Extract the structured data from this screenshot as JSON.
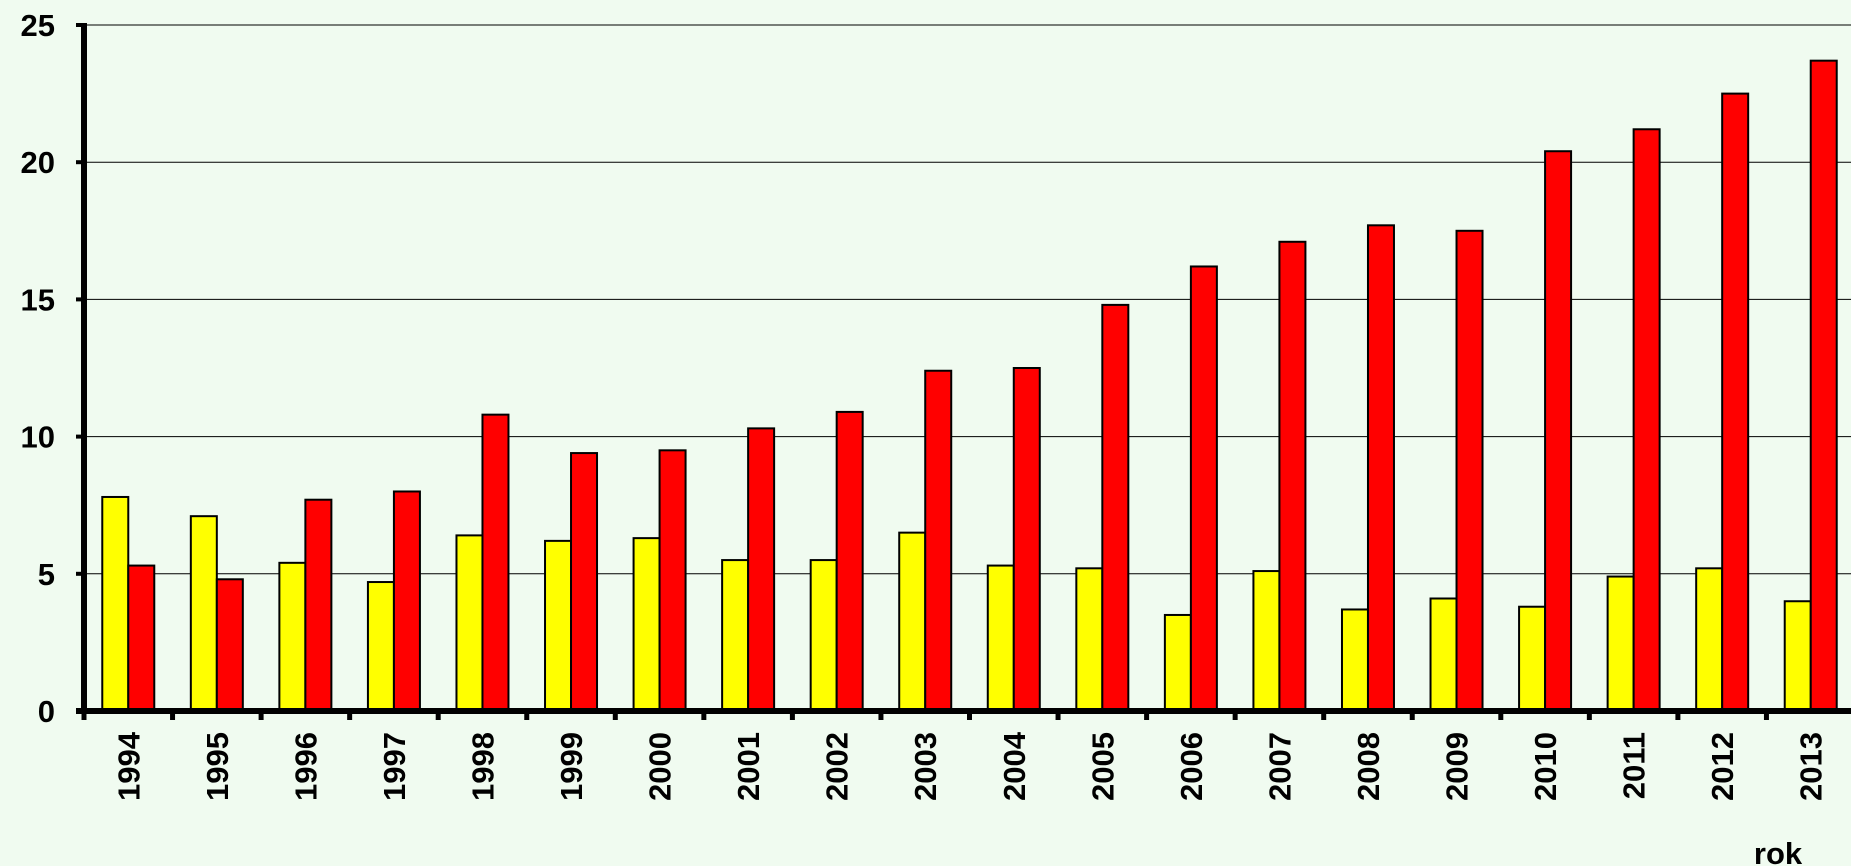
{
  "chart_data": {
    "type": "bar",
    "title": "",
    "xlabel": "rok",
    "ylabel": "",
    "ylim": [
      0,
      25
    ],
    "yticks": [
      0,
      5,
      10,
      15,
      20,
      25
    ],
    "grid": true,
    "background": "#f0fbf0",
    "categories": [
      "1994",
      "1995",
      "1996",
      "1997",
      "1998",
      "1999",
      "2000",
      "2001",
      "2002",
      "2003",
      "2004",
      "2005",
      "2006",
      "2007",
      "2008",
      "2009",
      "2010",
      "2011",
      "2012",
      "2013"
    ],
    "series": [
      {
        "color": "#ffff00",
        "values": [
          7.8,
          7.1,
          5.4,
          4.7,
          6.4,
          6.2,
          6.3,
          5.5,
          5.5,
          6.5,
          5.3,
          5.2,
          3.5,
          5.1,
          3.7,
          4.1,
          3.8,
          4.9,
          5.2,
          4.0
        ]
      },
      {
        "color": "#ff0000",
        "values": [
          5.3,
          4.8,
          7.7,
          8.0,
          10.8,
          9.4,
          9.5,
          10.3,
          10.9,
          12.4,
          12.5,
          14.8,
          16.2,
          17.1,
          17.7,
          17.5,
          20.4,
          21.2,
          22.5,
          23.7
        ]
      }
    ]
  }
}
